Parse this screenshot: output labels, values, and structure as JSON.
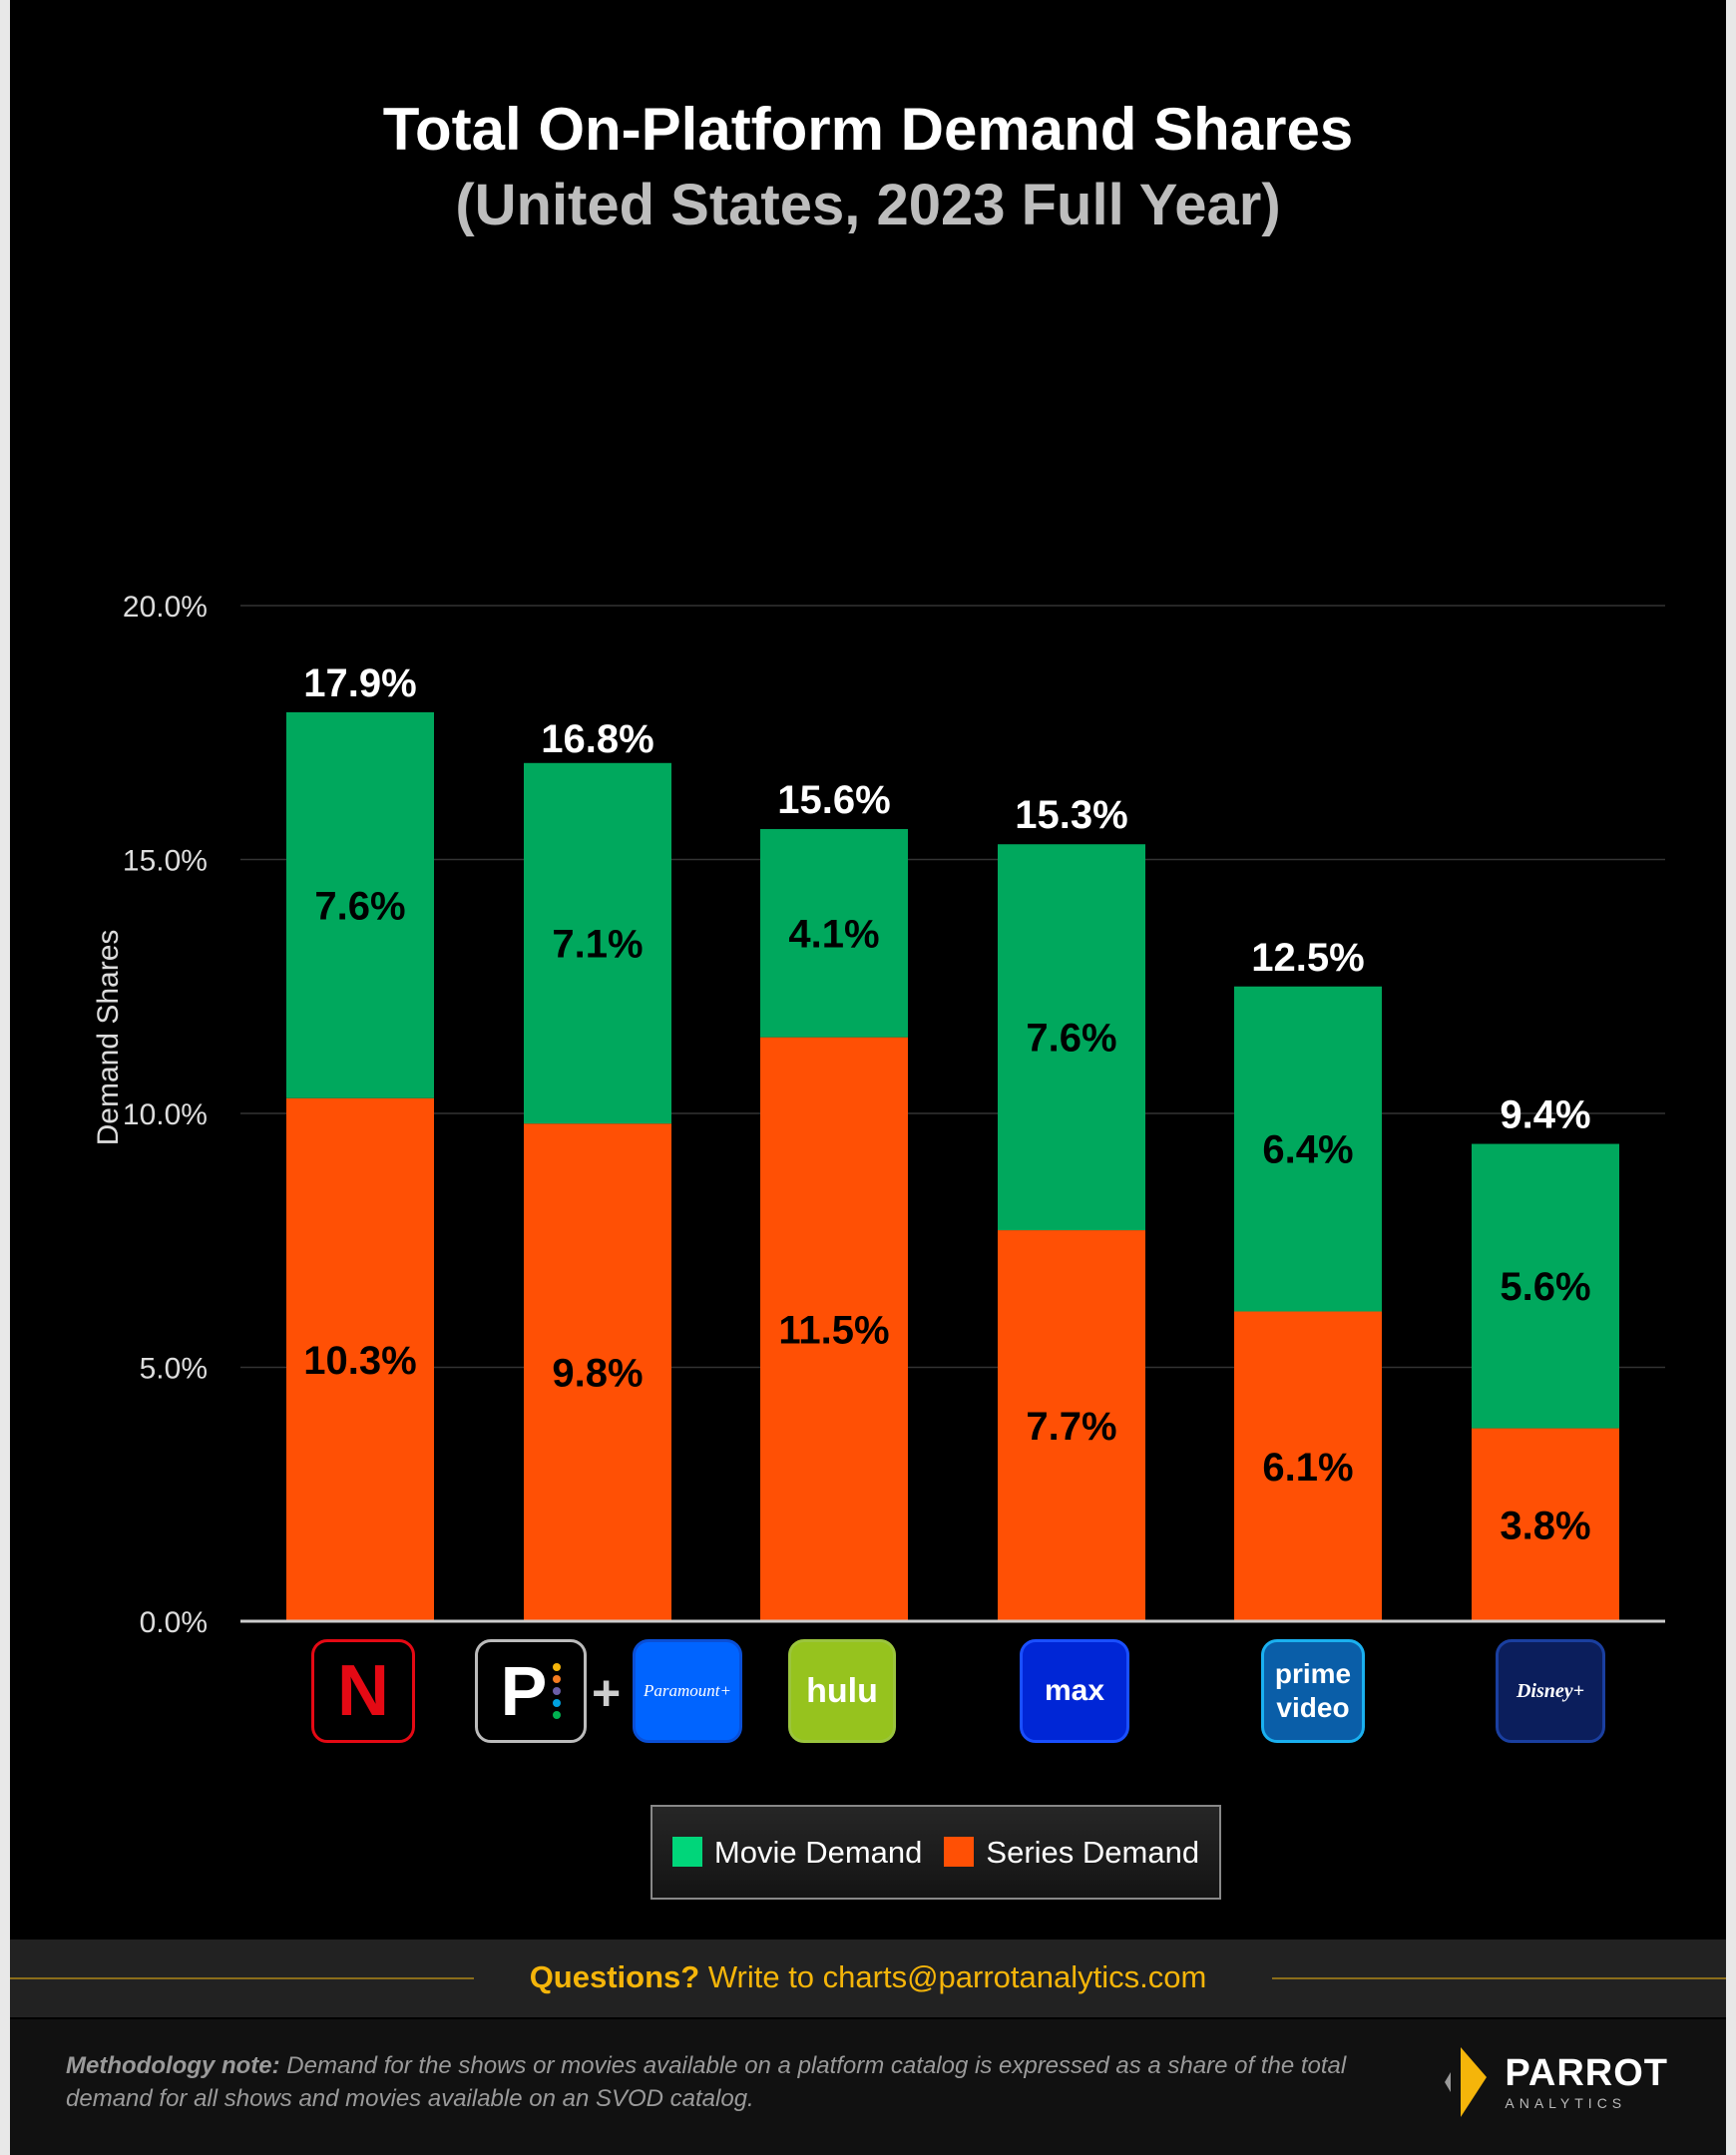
{
  "chart_data": {
    "type": "stacked-bar",
    "title": "Total On-Platform Demand Shares",
    "subtitle": "(United States, 2023 Full Year)",
    "ylabel": "Demand Shares",
    "ylim": [
      0,
      20
    ],
    "yticks": [
      "0.0%",
      "5.0%",
      "10.0%",
      "15.0%",
      "20.0%"
    ],
    "grid": true,
    "legend_position": "bottom",
    "categories": [
      "Netflix",
      "Peacock + Paramount+",
      "Hulu",
      "Max",
      "Prime Video",
      "Disney+"
    ],
    "series": [
      {
        "name": "Series Demand",
        "color": "#ff5005",
        "values": [
          10.3,
          9.8,
          11.5,
          7.7,
          6.1,
          3.8
        ],
        "labels": [
          "10.3%",
          "9.8%",
          "11.5%",
          "7.7%",
          "6.1%",
          "3.8%"
        ]
      },
      {
        "name": "Movie Demand",
        "color": "#00a85d",
        "values": [
          7.6,
          7.1,
          4.1,
          7.6,
          6.4,
          5.6
        ],
        "labels": [
          "7.6%",
          "7.1%",
          "4.1%",
          "7.6%",
          "6.4%",
          "5.6%"
        ]
      }
    ],
    "totals": [
      17.9,
      16.8,
      15.6,
      15.3,
      12.5,
      9.4
    ],
    "total_labels": [
      "17.9%",
      "16.8%",
      "15.6%",
      "15.3%",
      "12.5%",
      "9.4%"
    ]
  },
  "logos": {
    "netflix": "N",
    "peacock": "P",
    "plus": "+",
    "paramount": "Paramount+",
    "hulu": "hulu",
    "max": "max",
    "prime1": "prime",
    "prime2": "video",
    "disney": "Disney+"
  },
  "legend": {
    "movie": "Movie Demand",
    "series": "Series Demand",
    "movie_color": "#00d67a",
    "series_color": "#ff5005"
  },
  "footer": {
    "questions_bold": "Questions?",
    "questions_text": " Write to charts@parrotanalytics.com",
    "method_bold": "Methodology note:",
    "method_text": " Demand for the shows or movies available on a platform catalog is expressed as a share of the total demand for all shows and movies available on an SVOD catalog.",
    "brand": "PARROT",
    "brand_sub": "ANALYTICS"
  }
}
